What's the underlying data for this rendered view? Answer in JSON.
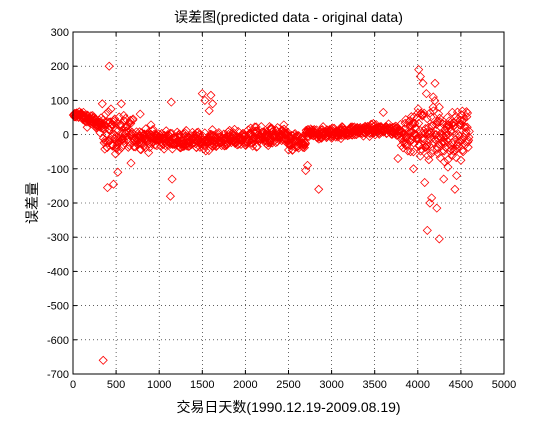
{
  "chart_data": {
    "type": "scatter",
    "title": "误差图(predicted data - original data)",
    "xlabel": "交易日天数(1990.12.19-2009.08.19)",
    "ylabel": "误差量",
    "xlim": [
      0,
      5000
    ],
    "ylim": [
      -700,
      300
    ],
    "xticks": [
      0,
      500,
      1000,
      1500,
      2000,
      2500,
      3000,
      3500,
      4000,
      4500,
      5000
    ],
    "yticks": [
      -700,
      -600,
      -500,
      -400,
      -300,
      -200,
      -100,
      0,
      100,
      200,
      300
    ],
    "grid": true,
    "grid_style": "dotted",
    "marker": "diamond",
    "marker_color": "#ff0000",
    "x_max_data": 4600,
    "outliers": [
      {
        "x": 350,
        "y": -660
      },
      {
        "x": 420,
        "y": 200
      },
      {
        "x": 400,
        "y": -155
      },
      {
        "x": 470,
        "y": -145
      },
      {
        "x": 520,
        "y": -110
      },
      {
        "x": 340,
        "y": 90
      },
      {
        "x": 380,
        "y": 60
      },
      {
        "x": 560,
        "y": 90
      },
      {
        "x": 780,
        "y": 60
      },
      {
        "x": 1140,
        "y": 95
      },
      {
        "x": 1130,
        "y": -180
      },
      {
        "x": 1150,
        "y": -130
      },
      {
        "x": 1500,
        "y": 120
      },
      {
        "x": 1530,
        "y": 100
      },
      {
        "x": 1600,
        "y": 115
      },
      {
        "x": 1620,
        "y": 90
      },
      {
        "x": 1580,
        "y": 70
      },
      {
        "x": 2700,
        "y": -105
      },
      {
        "x": 2720,
        "y": -90
      },
      {
        "x": 2850,
        "y": -160
      },
      {
        "x": 3600,
        "y": 65
      },
      {
        "x": 3770,
        "y": -70
      },
      {
        "x": 4010,
        "y": 190
      },
      {
        "x": 4030,
        "y": 170
      },
      {
        "x": 4060,
        "y": 150
      },
      {
        "x": 4100,
        "y": 120
      },
      {
        "x": 4200,
        "y": 150
      },
      {
        "x": 4180,
        "y": 110
      },
      {
        "x": 4250,
        "y": 80
      },
      {
        "x": 4400,
        "y": 65
      },
      {
        "x": 4110,
        "y": -280
      },
      {
        "x": 4140,
        "y": -200
      },
      {
        "x": 4160,
        "y": -185
      },
      {
        "x": 4220,
        "y": -215
      },
      {
        "x": 4250,
        "y": -305
      },
      {
        "x": 4430,
        "y": -160
      },
      {
        "x": 4450,
        "y": -120
      },
      {
        "x": 4300,
        "y": -130
      },
      {
        "x": 4080,
        "y": -140
      },
      {
        "x": 3950,
        "y": -100
      },
      {
        "x": 4350,
        "y": -95
      },
      {
        "x": 4500,
        "y": -75
      }
    ]
  }
}
